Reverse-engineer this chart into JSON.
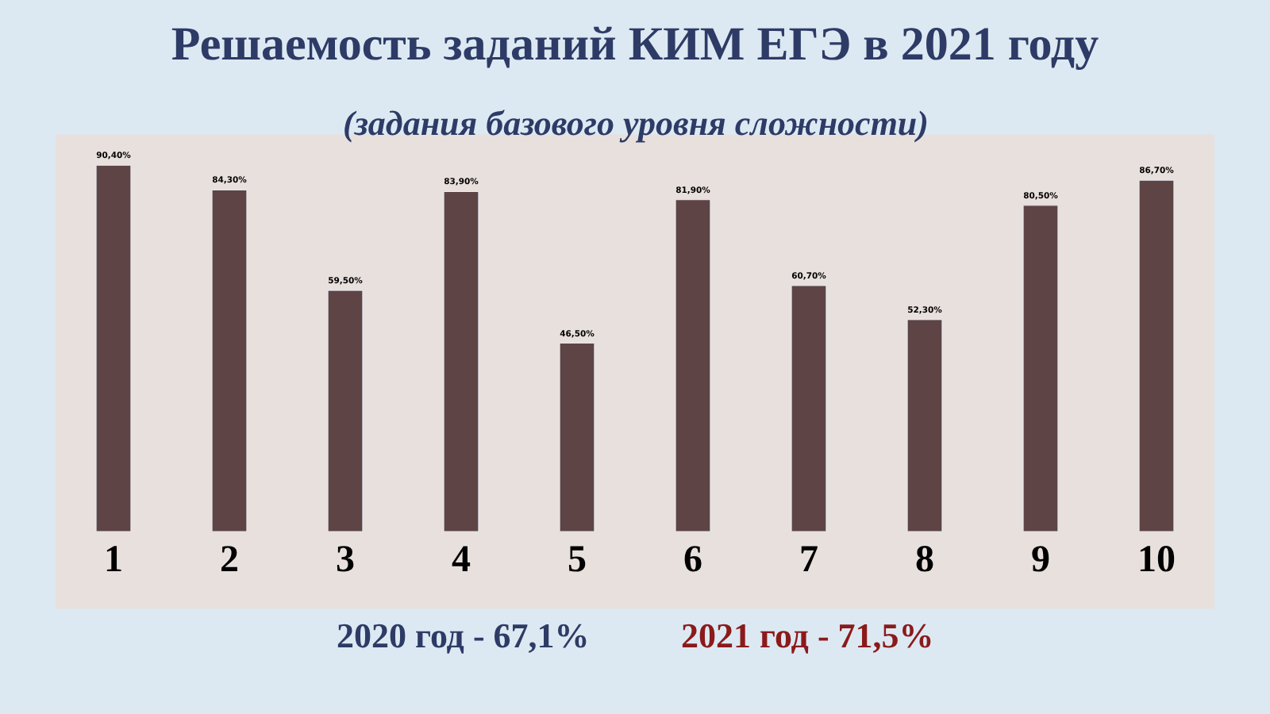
{
  "chart_data": {
    "type": "bar",
    "title": "Решаемость заданий КИМ ЕГЭ в 2021 году",
    "subtitle": "(задания базового уровня сложности)",
    "categories": [
      "1",
      "2",
      "3",
      "4",
      "5",
      "6",
      "7",
      "8",
      "9",
      "10"
    ],
    "values": [
      90.4,
      84.3,
      59.5,
      83.9,
      46.5,
      81.9,
      60.7,
      52.3,
      80.5,
      86.7
    ],
    "value_labels": [
      "90,40%",
      "84,30%",
      "59,50%",
      "83,90%",
      "46,50%",
      "81,90%",
      "60,70%",
      "52,30%",
      "80,50%",
      "86,70%"
    ],
    "color": "#5e4444",
    "tick_labels": "x",
    "grid": false,
    "legend": false,
    "annotations": [
      "2020 год - 67,1%",
      "2021 год - 71,5%"
    ]
  }
}
